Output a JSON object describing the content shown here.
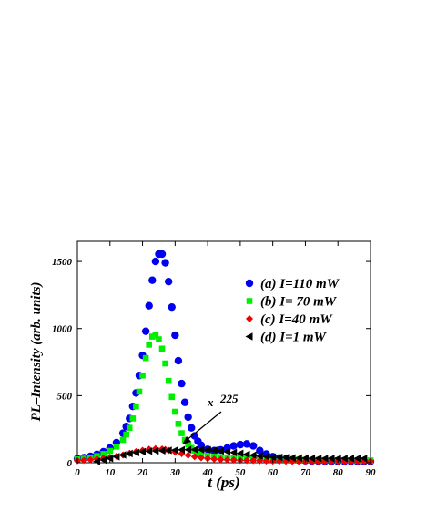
{
  "chart_data": {
    "type": "scatter",
    "xlabel": "t (ps)",
    "ylabel": "PL–Intensity (arb. units)",
    "xlim": [
      0,
      90
    ],
    "ylim": [
      0,
      1650
    ],
    "xticks": [
      "0",
      "10",
      "20",
      "30",
      "40",
      "50",
      "60",
      "70",
      "80",
      "90"
    ],
    "yticks": [
      "0",
      "500",
      "1000",
      "1500"
    ],
    "grid": false,
    "legend_position": "right",
    "annotation": {
      "text": "225",
      "prefix": "x"
    },
    "series": [
      {
        "name": "(a) I=110 mW",
        "marker": "circle",
        "color": "#0000ee",
        "x": [
          0,
          2,
          4,
          6,
          8,
          10,
          12,
          14,
          15,
          16,
          17,
          18,
          19,
          20,
          21,
          22,
          23,
          24,
          25,
          26,
          27,
          28,
          29,
          30,
          31,
          32,
          33,
          34,
          35,
          36,
          37,
          38,
          40,
          42,
          44,
          46,
          48,
          50,
          52,
          54,
          56,
          58,
          60,
          62,
          64,
          66,
          68,
          70,
          72,
          74,
          76,
          78,
          80,
          82,
          84,
          86,
          88,
          90
        ],
        "y": [
          30,
          38,
          48,
          62,
          82,
          110,
          150,
          220,
          270,
          330,
          420,
          520,
          650,
          800,
          980,
          1170,
          1360,
          1500,
          1555,
          1555,
          1490,
          1350,
          1160,
          950,
          760,
          590,
          450,
          340,
          260,
          200,
          160,
          130,
          100,
          90,
          95,
          110,
          125,
          135,
          140,
          125,
          90,
          65,
          45,
          35,
          28,
          22,
          18,
          15,
          13,
          12,
          11,
          10,
          10,
          10,
          10,
          10,
          10,
          10
        ]
      },
      {
        "name": "(b) I= 70 mW",
        "marker": "square",
        "color": "#00ee00",
        "x": [
          0,
          2,
          4,
          6,
          8,
          10,
          12,
          14,
          15,
          16,
          17,
          18,
          19,
          20,
          21,
          22,
          23,
          24,
          25,
          26,
          27,
          28,
          29,
          30,
          31,
          32,
          33,
          34,
          35,
          36,
          37,
          38,
          40,
          42,
          44,
          46,
          48,
          50,
          52,
          54,
          56,
          58,
          60,
          62,
          64,
          66,
          68,
          70,
          72,
          74,
          76,
          78,
          80,
          82,
          84,
          86,
          88,
          90
        ],
        "y": [
          25,
          30,
          38,
          50,
          66,
          88,
          120,
          170,
          210,
          260,
          330,
          420,
          530,
          650,
          780,
          880,
          940,
          950,
          920,
          850,
          740,
          610,
          490,
          380,
          290,
          220,
          170,
          135,
          110,
          90,
          75,
          65,
          52,
          45,
          42,
          40,
          38,
          36,
          34,
          32,
          30,
          28,
          26,
          25,
          24,
          23,
          22,
          21,
          20,
          20,
          19,
          19,
          18,
          18,
          18,
          17,
          17,
          17
        ]
      },
      {
        "name": "(c) I=40 mW",
        "marker": "diamond",
        "color": "#ee0000",
        "x": [
          0,
          2,
          4,
          6,
          8,
          10,
          12,
          14,
          16,
          18,
          20,
          22,
          24,
          26,
          27,
          28,
          30,
          32,
          34,
          36,
          38,
          40,
          42,
          44,
          46,
          48,
          50,
          52,
          54,
          56,
          58,
          60,
          62,
          64,
          66,
          68,
          70,
          72,
          74,
          76,
          78,
          80,
          82,
          84,
          86,
          88,
          90
        ],
        "y": [
          15,
          18,
          22,
          27,
          33,
          40,
          48,
          58,
          70,
          82,
          92,
          100,
          104,
          102,
          98,
          92,
          80,
          68,
          56,
          45,
          37,
          31,
          27,
          24,
          22,
          20,
          18,
          17,
          16,
          15,
          14,
          13,
          12,
          12,
          11,
          11,
          10,
          10,
          10,
          10,
          10,
          10,
          10,
          10,
          10,
          10,
          10
        ]
      },
      {
        "name": "(d) I=1 mW",
        "marker": "triangle-left",
        "color": "#000000",
        "x": [
          6,
          8,
          10,
          12,
          14,
          16,
          18,
          20,
          22,
          24,
          26,
          28,
          30,
          32,
          34,
          36,
          38,
          40,
          42,
          44,
          46,
          48,
          50,
          52,
          54,
          56,
          58,
          60,
          62,
          64,
          66,
          68,
          70,
          72,
          74,
          76,
          78,
          80,
          82,
          84,
          86,
          88
        ],
        "y": [
          10,
          20,
          32,
          45,
          58,
          68,
          76,
          82,
          86,
          88,
          90,
          92,
          94,
          96,
          97,
          98,
          97,
          96,
          93,
          88,
          82,
          76,
          70,
          62,
          56,
          50,
          46,
          42,
          40,
          38,
          36,
          35,
          34,
          33,
          33,
          32,
          32,
          32,
          32,
          32,
          32,
          32
        ]
      }
    ]
  }
}
